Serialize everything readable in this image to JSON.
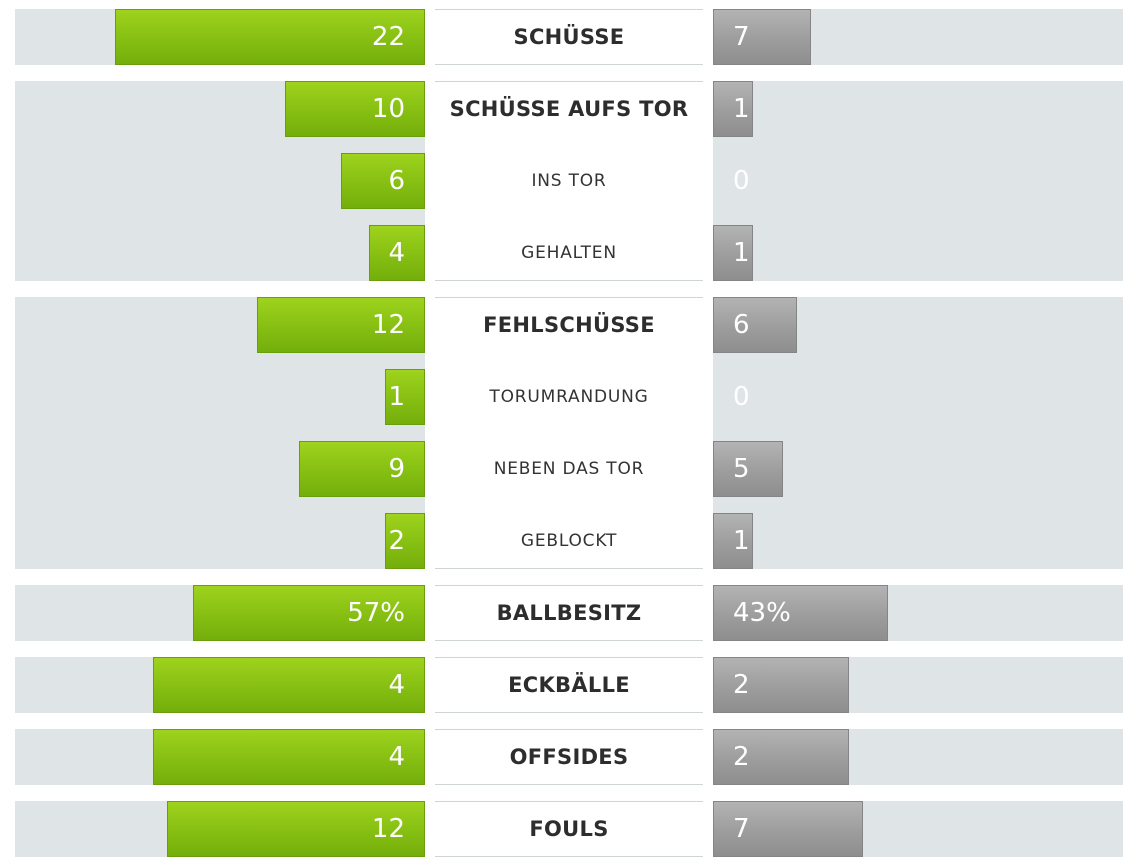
{
  "stats": [
    {
      "label": "SCHÜSSE",
      "home": 22,
      "away": 7,
      "home_text": "22",
      "away_text": "7",
      "type": "main"
    },
    {
      "label": "SCHÜSSE AUFS TOR",
      "home": 10,
      "away": 1,
      "home_text": "10",
      "away_text": "1",
      "type": "main"
    },
    {
      "label": "INS TOR",
      "home": 6,
      "away": 0,
      "home_text": "6",
      "away_text": "0",
      "type": "sub"
    },
    {
      "label": "GEHALTEN",
      "home": 4,
      "away": 1,
      "home_text": "4",
      "away_text": "1",
      "type": "sub"
    },
    {
      "label": "FEHLSCHÜSSE",
      "home": 12,
      "away": 6,
      "home_text": "12",
      "away_text": "6",
      "type": "main"
    },
    {
      "label": "TORUMRANDUNG",
      "home": 1,
      "away": 0,
      "home_text": "1",
      "away_text": "0",
      "type": "sub"
    },
    {
      "label": "NEBEN DAS TOR",
      "home": 9,
      "away": 5,
      "home_text": "9",
      "away_text": "5",
      "type": "sub"
    },
    {
      "label": "GEBLOCKT",
      "home": 2,
      "away": 1,
      "home_text": "2",
      "away_text": "1",
      "type": "sub"
    },
    {
      "label": "BALLBESITZ",
      "home": 57,
      "away": 43,
      "home_text": "57%",
      "away_text": "43%",
      "type": "main"
    },
    {
      "label": "ECKBÄLLE",
      "home": 4,
      "away": 2,
      "home_text": "4",
      "away_text": "2",
      "type": "main"
    },
    {
      "label": "OFFSIDES",
      "home": 4,
      "away": 2,
      "home_text": "4",
      "away_text": "2",
      "type": "main"
    },
    {
      "label": "FOULS",
      "home": 12,
      "away": 7,
      "home_text": "12",
      "away_text": "7",
      "type": "main"
    }
  ],
  "colors": {
    "home_bar": "#86bf12",
    "away_bar": "#9d9d9d",
    "row_background": "#dfe4e7",
    "label_text": "#2d2d2d",
    "zero_value_text": "#ffffff"
  }
}
